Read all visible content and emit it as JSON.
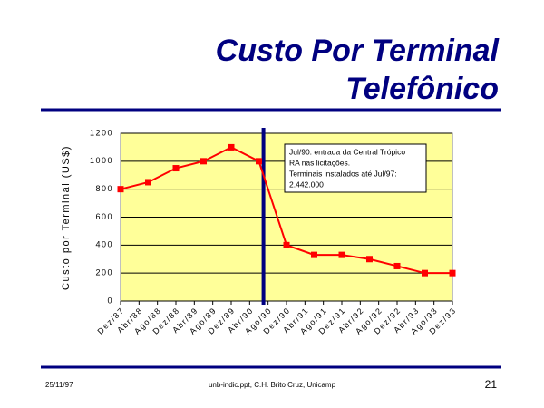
{
  "slide": {
    "title": [
      "Custo Por Terminal",
      "Telefônico"
    ],
    "footer": {
      "date": "25/11/97",
      "source": "unb-indic.ppt, C.H. Brito Cruz, Unicamp",
      "page": "21"
    }
  },
  "chart_data": {
    "type": "line",
    "y_label": "Custo por Terminal (US$)",
    "x": [
      0,
      6,
      12,
      18,
      24,
      30,
      36,
      42,
      48,
      54,
      60,
      66,
      72
    ],
    "series": [
      {
        "color": "#ff0000",
        "values": [
          800,
          850,
          950,
          1000,
          1100,
          1000,
          400,
          330,
          330,
          300,
          250,
          200,
          200
        ]
      }
    ],
    "xlim": [
      0,
      72
    ],
    "xticks": [
      {
        "value": 0,
        "label": "Dez/87"
      },
      {
        "value": 4,
        "label": "Abr/88"
      },
      {
        "value": 8,
        "label": "Ago/88"
      },
      {
        "value": 12,
        "label": "Dez/88"
      },
      {
        "value": 16,
        "label": "Abr/89"
      },
      {
        "value": 20,
        "label": "Ago/89"
      },
      {
        "value": 24,
        "label": "Dez/89"
      },
      {
        "value": 28,
        "label": "Abr/90"
      },
      {
        "value": 32,
        "label": "Ago/90"
      },
      {
        "value": 36,
        "label": "Dez/90"
      },
      {
        "value": 40,
        "label": "Abr/91"
      },
      {
        "value": 44,
        "label": "Ago/91"
      },
      {
        "value": 48,
        "label": "Dez/91"
      },
      {
        "value": 52,
        "label": "Abr/92"
      },
      {
        "value": 56,
        "label": "Ago/92"
      },
      {
        "value": 60,
        "label": "Dez/92"
      },
      {
        "value": 64,
        "label": "Abr/93"
      },
      {
        "value": 68,
        "label": "Ago/93"
      },
      {
        "value": 72,
        "label": "Dez/93"
      }
    ],
    "ylim": [
      0,
      1200
    ],
    "yticks": [
      0,
      200,
      400,
      600,
      800,
      1000,
      1200
    ],
    "grid": true,
    "plot_color": "#ffff99",
    "annotation": {
      "x": 31,
      "color": "#000080",
      "text": [
        "Jul/90: entrada da Central Trópico",
        "RA nas licitações.",
        "Terminais instalados até Jul/97:",
        "2.442.000"
      ]
    }
  }
}
